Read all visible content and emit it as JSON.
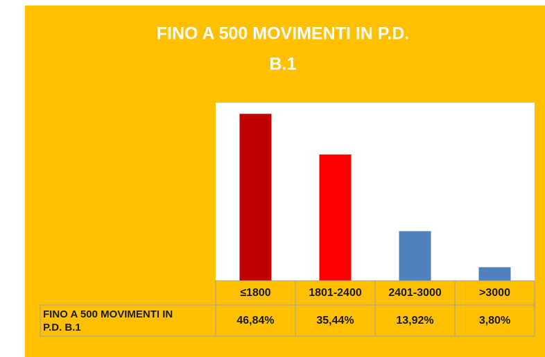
{
  "chart_data": {
    "type": "bar",
    "title": "FINO A 500 MOVIMENTI IN P.D.",
    "subtitle": "B.1",
    "categories": [
      "≤1800",
      "1801-2400",
      "2401-3000",
      ">3000"
    ],
    "series": [
      {
        "name": "FINO A 500 MOVIMENTI IN P.D. B.1",
        "colors": [
          "#c00000",
          "#ff0000",
          "#4f81bd",
          "#4f81bd"
        ],
        "values": [
          46.84,
          35.44,
          13.92,
          3.8
        ],
        "value_labels": [
          "46,84%",
          "35,44%",
          "13,92%",
          "3,80%"
        ]
      }
    ],
    "ylim": [
      0,
      50
    ],
    "background": "#ffc000"
  }
}
